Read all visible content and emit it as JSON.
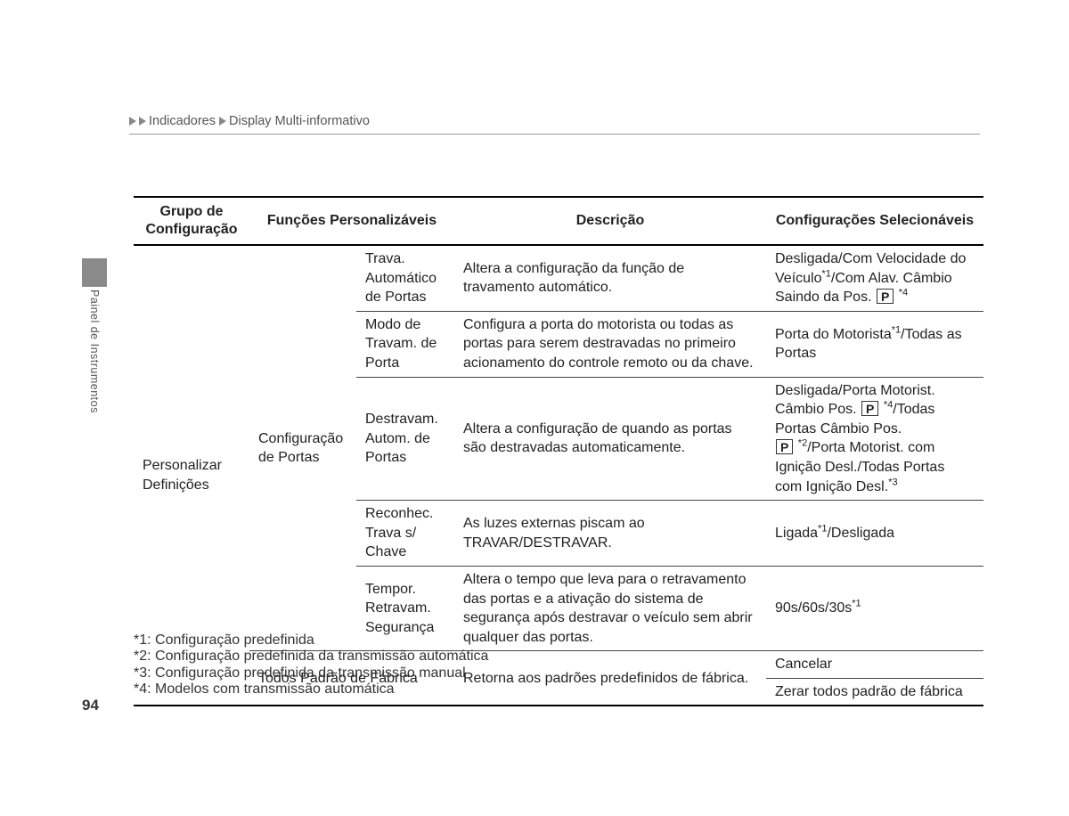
{
  "page": {
    "number": "94",
    "side_tab_label": "Painel de Instrumentos",
    "colors": {
      "tab_bg": "#8a8a8a",
      "text": "#222222",
      "muted": "#555555",
      "rule": "#000000"
    }
  },
  "breadcrumb": {
    "a": "Indicadores",
    "b": "Display Multi-informativo"
  },
  "headers": {
    "group": "Grupo de Configuração",
    "func": "Funções Personalizáveis",
    "desc": "Descrição",
    "sel": "Configurações Selecionáveis"
  },
  "group_label": "Personalizar Definições",
  "door_cfg_label": "Configuração de Portas",
  "rows": [
    {
      "sub": "Trava. Automático de Portas",
      "desc": "Altera a configuração da função de travamento automático.",
      "sel_pre": "Desligada/Com Velocidade do Veículo",
      "sel_mid": "/Com Alav. Câmbio Saindo da Pos. ",
      "sel_sup1": "*1",
      "pbox": "P",
      "sel_post_sup": "*4"
    },
    {
      "sub": "Modo de Travam. de Porta",
      "desc": "Configura a porta do motorista ou todas as portas para serem destravadas no primeiro acionamento do controle remoto ou da chave.",
      "sel_plain_a": "Porta do Motorista",
      "sel_sup_a": "*1",
      "sel_plain_b": "/Todas as Portas"
    },
    {
      "sub": "Destravam. Autom. de Portas",
      "desc": "Altera a configuração de quando as portas são destravadas automaticamente.",
      "sel_l1_a": "Desligada/Porta Motorist. Câmbio Pos. ",
      "p1": "P",
      "sel_l1_sup": "*4",
      "sel_l1_b": "/Todas Portas Câmbio Pos. ",
      "p2": "P",
      "sel_l2_sup": "*2",
      "sel_l2_b": "/Porta Motorist. com Ignição Desl./Todas Portas com Ignição Desl.",
      "sel_l3_sup": "*3"
    },
    {
      "sub": "Reconhec. Trava s/ Chave",
      "desc": "As luzes externas piscam ao TRAVAR/DESTRAVAR.",
      "sel_a": "Ligada",
      "sel_sup": "*1",
      "sel_b": "/Desligada"
    },
    {
      "sub": "Tempor. Retravam. Segurança",
      "desc": "Altera o tempo que leva para o retravamento das portas e a ativação do sistema de segurança após destravar o veículo sem abrir qualquer das portas.",
      "sel_a": "90s/60s/30s",
      "sel_sup": "*1"
    }
  ],
  "factory": {
    "label": "Todos Padrão de Fábrica",
    "desc": "Retorna aos padrões predefinidos de fábrica.",
    "sel1": "Cancelar",
    "sel2": "Zerar todos padrão de fábrica"
  },
  "footnotes": {
    "f1": "*1: Configuração predefinida",
    "f2": "*2: Configuração predefinida da transmissão automática",
    "f3": "*3: Configuração predefinida da transmissão manual",
    "f4": "*4: Modelos com transmissão automática"
  }
}
